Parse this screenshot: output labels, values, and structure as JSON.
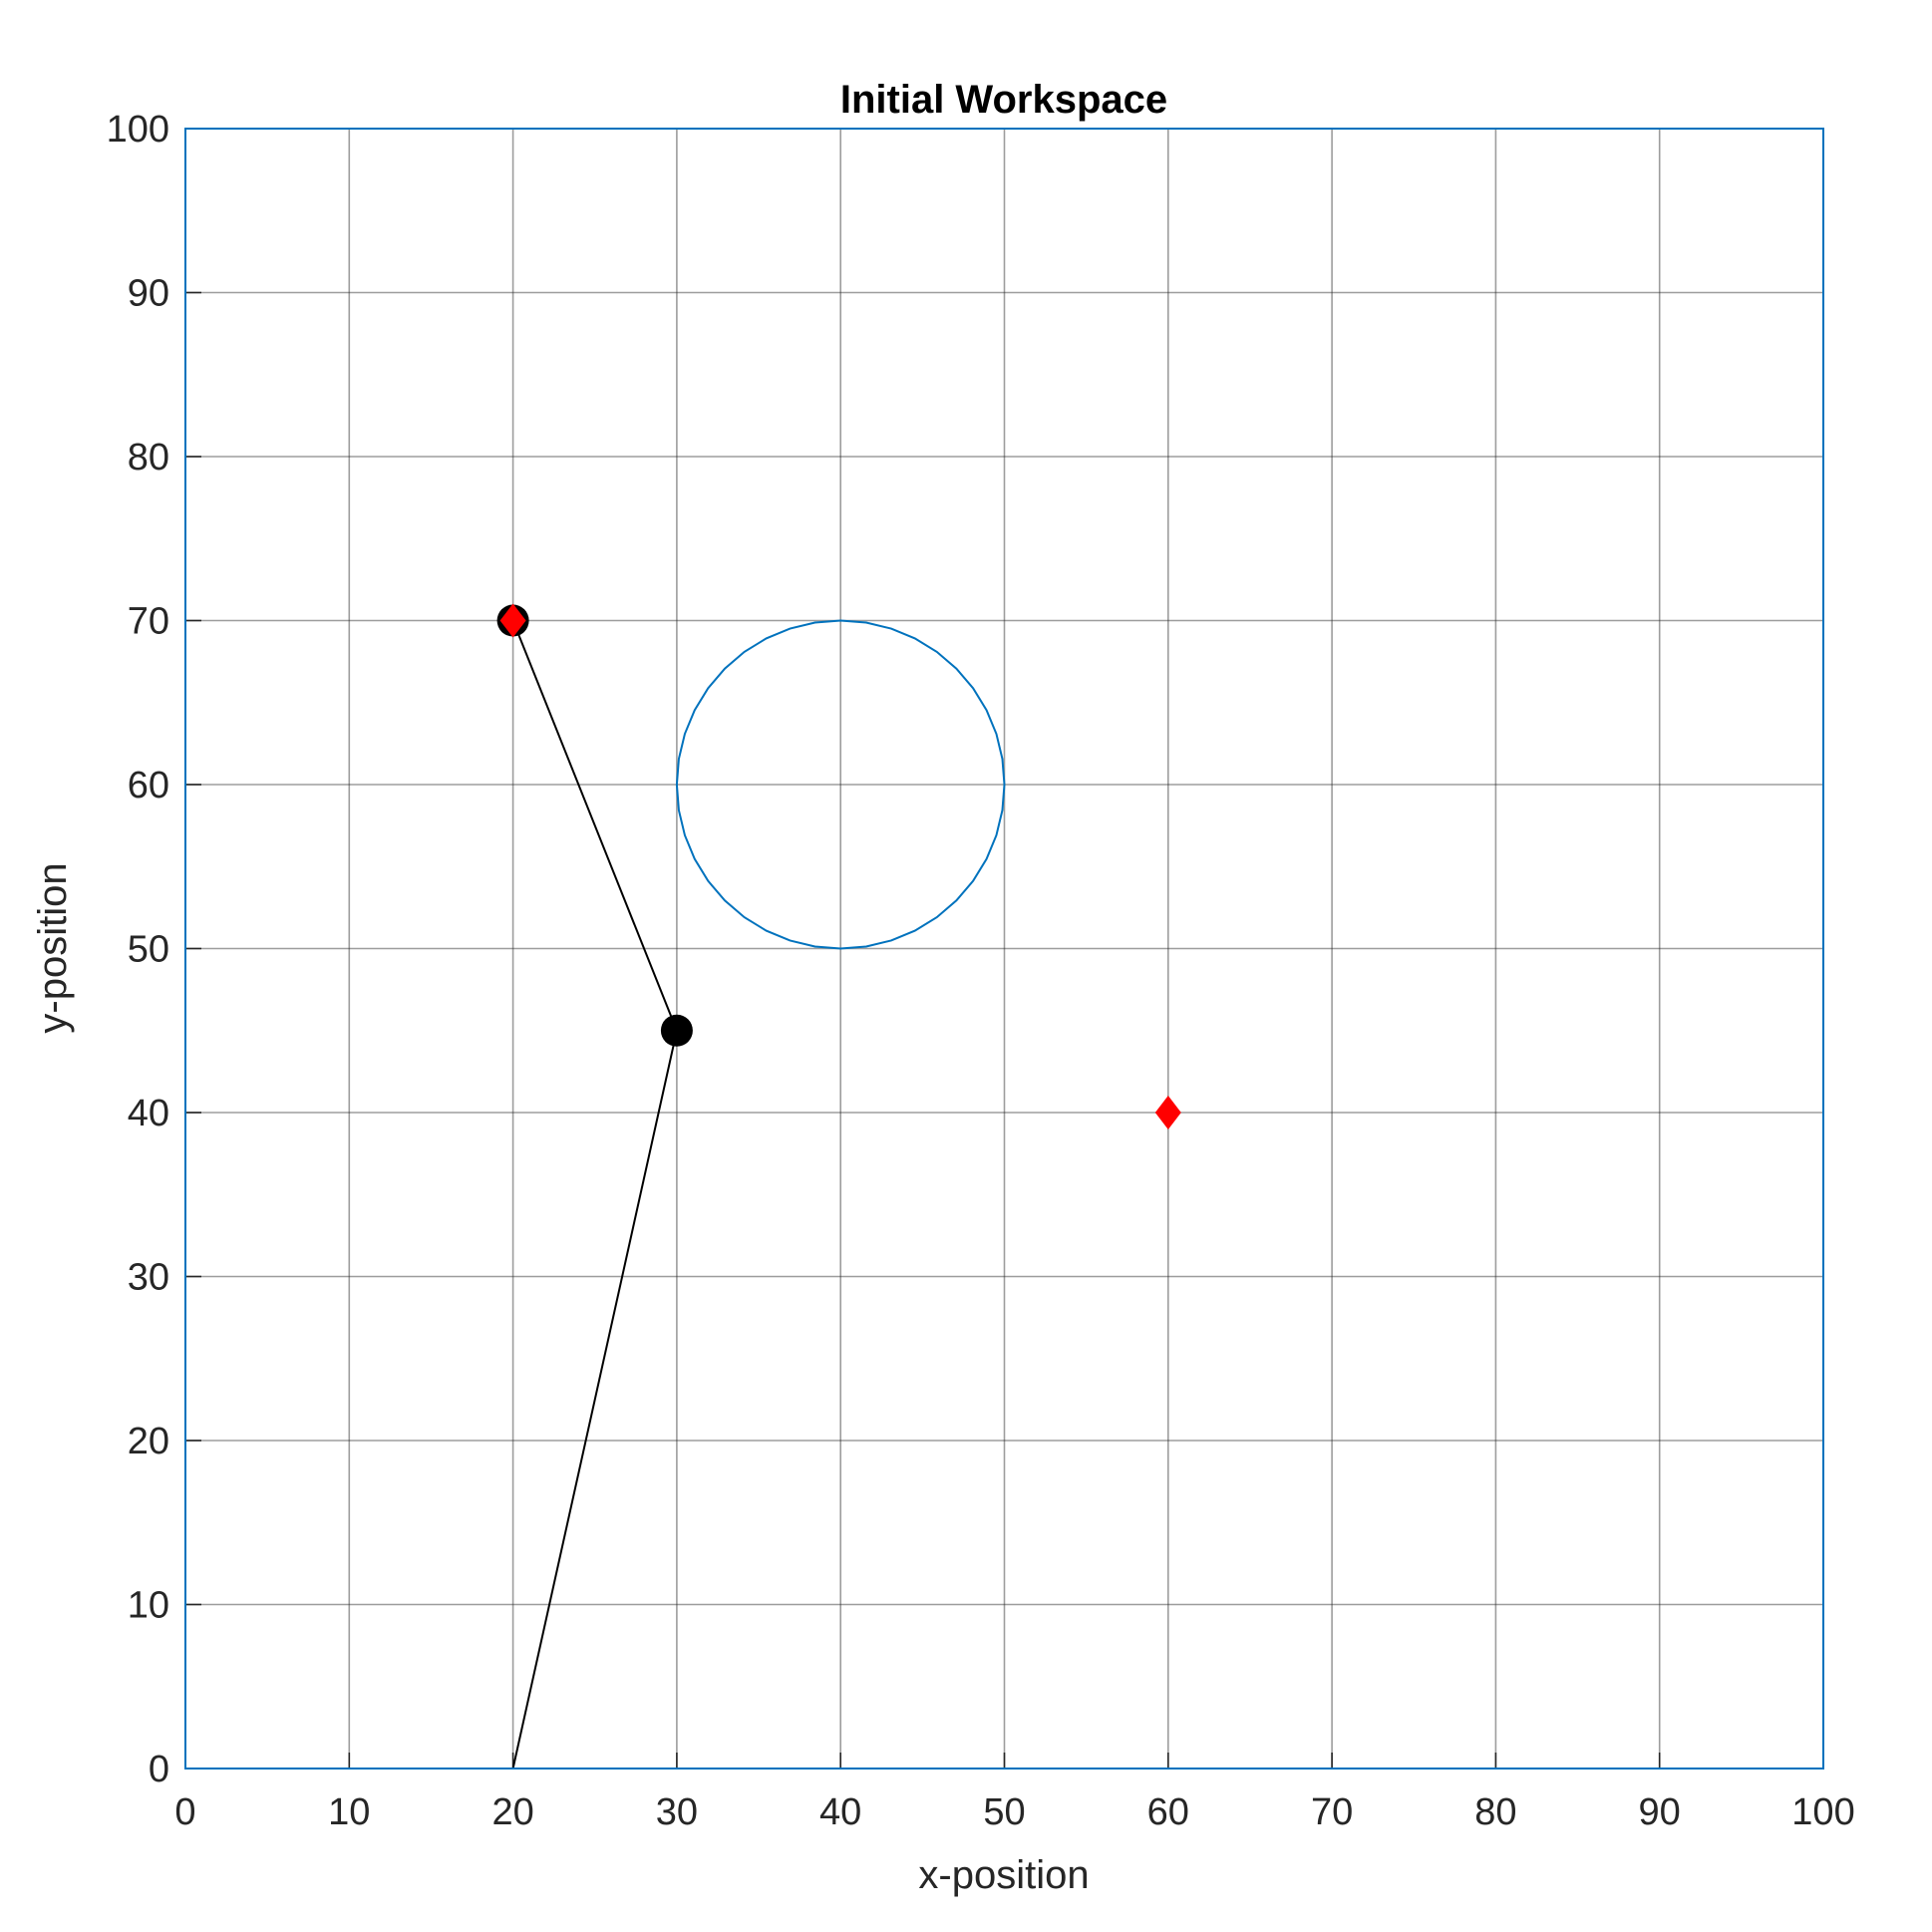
{
  "chart_data": {
    "type": "scatter",
    "title": "Initial Workspace",
    "xlabel": "x-position",
    "ylabel": "y-position",
    "xlim": [
      0,
      100
    ],
    "ylim": [
      0,
      100
    ],
    "xticks": [
      0,
      10,
      20,
      30,
      40,
      50,
      60,
      70,
      80,
      90,
      100
    ],
    "yticks": [
      0,
      10,
      20,
      30,
      40,
      50,
      60,
      70,
      80,
      90,
      100
    ],
    "grid": true,
    "legend": "none",
    "colors": {
      "axis": "#0072BD",
      "grid": "#262626",
      "obstacle": "#0072BD",
      "arm": "#000000",
      "target": "#FF0000"
    },
    "arm": {
      "x": [
        20,
        30,
        20
      ],
      "y": [
        0,
        45,
        70
      ],
      "joints": [
        {
          "x": 30,
          "y": 45
        },
        {
          "x": 20,
          "y": 70
        }
      ]
    },
    "obstacle": {
      "shape": "circle",
      "center": [
        40,
        60
      ],
      "radius": 10
    },
    "targets": [
      {
        "x": 20,
        "y": 70
      },
      {
        "x": 60,
        "y": 40
      }
    ]
  }
}
